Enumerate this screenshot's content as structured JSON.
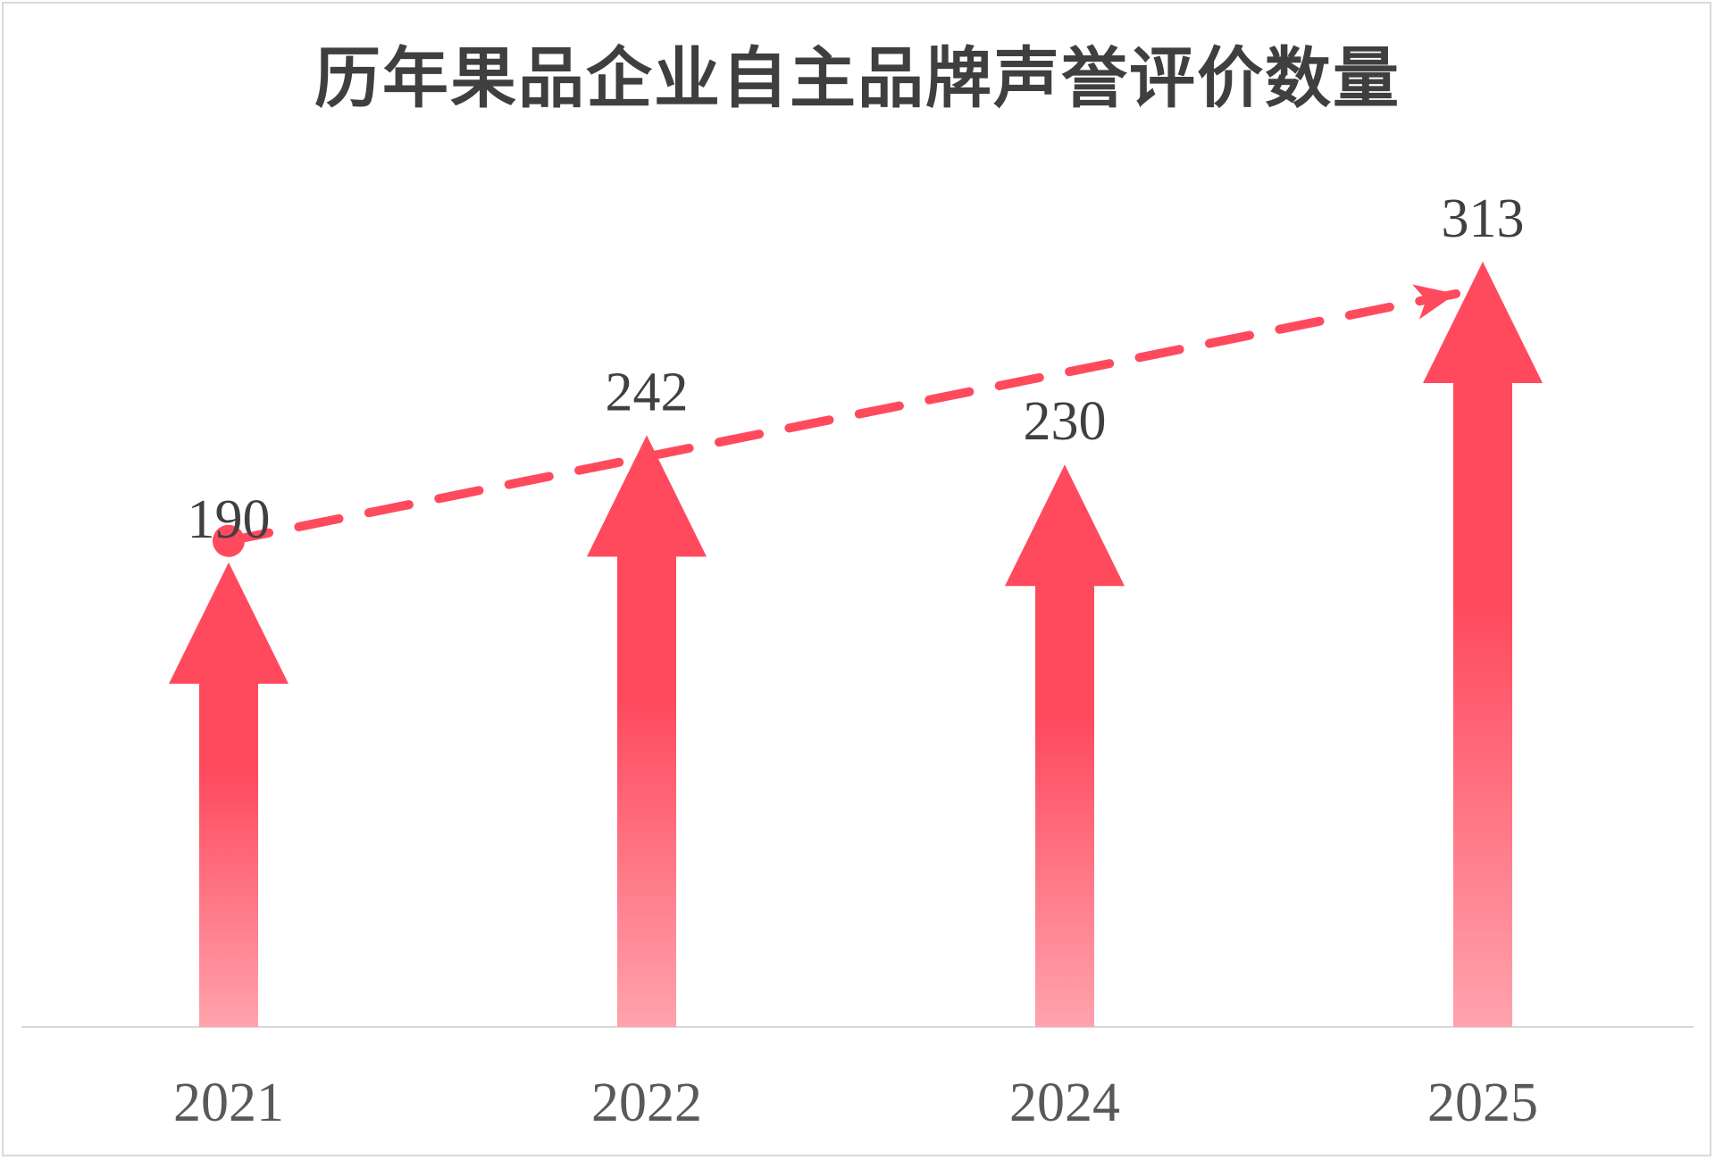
{
  "chart_data": {
    "type": "bar",
    "title": "历年果品企业自主品牌声誉评价数量",
    "categories": [
      "2021",
      "2022",
      "2024",
      "2025"
    ],
    "values": [
      190,
      242,
      230,
      313
    ],
    "xlabel": "",
    "ylabel": "",
    "ylim": [
      0,
      420
    ],
    "grid": false,
    "legend": "none",
    "bar_style": "upward-arrow",
    "trend_line": "dashed-arrow",
    "colors": {
      "bar_top": "#ff4a5e",
      "bar_bottom": "#ffa3ad",
      "trend": "#ff4a5e",
      "axis": "#d9d9d9",
      "title": "#3f3f3f",
      "label": "#404040",
      "tick": "#595959"
    }
  }
}
